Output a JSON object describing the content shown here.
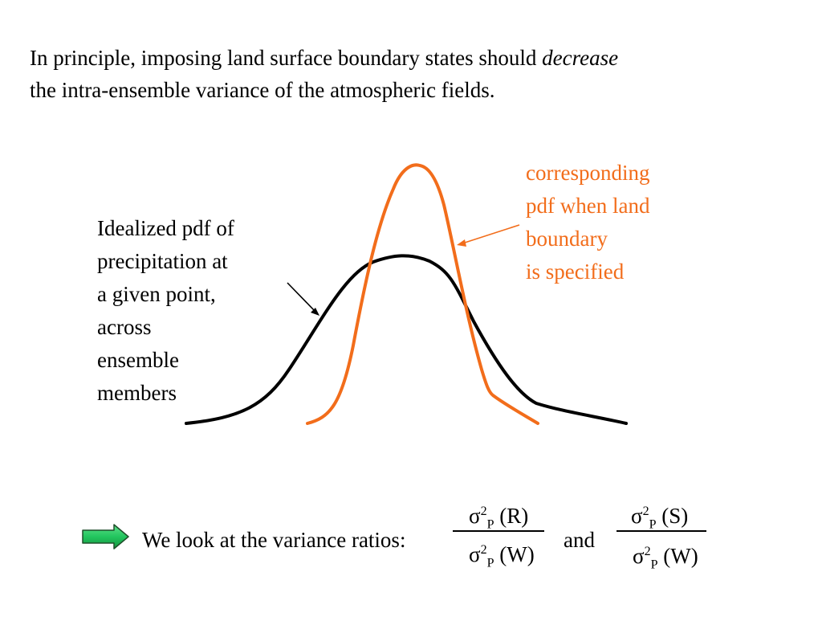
{
  "intro": {
    "line1_before": "In principle, imposing land surface boundary states should ",
    "line1_emphasis": "decrease",
    "line2": "the intra-ensemble variance of the atmospheric fields."
  },
  "left_label": {
    "lines": [
      "Idealized pdf of",
      "precipitation at",
      "a given point,",
      "across",
      "ensemble",
      "members"
    ]
  },
  "right_label": {
    "lines": [
      "corresponding",
      "pdf when land",
      "boundary",
      "is specified"
    ]
  },
  "colors": {
    "black_curve": "#000000",
    "orange_curve": "#f26d1b",
    "arrow_fill": "#22c55e",
    "arrow_stroke": "#1f4f2a"
  },
  "icons": {
    "next_arrow": "right-arrow-icon"
  },
  "conclusion": {
    "text": "We look at the variance ratios:",
    "and": "and",
    "ratio1": {
      "num_symbol": "σ",
      "num_sup": "2",
      "num_sub": "P",
      "num_tail": " (R)",
      "den_symbol": "σ",
      "den_sup": "2",
      "den_sub": "P",
      "den_tail": " (W)"
    },
    "ratio2": {
      "num_symbol": "σ",
      "num_sup": "2",
      "num_sub": "P",
      "num_tail": " (S)",
      "den_symbol": "σ",
      "den_sup": "2",
      "den_sub": "P",
      "den_tail": " (W)"
    }
  }
}
